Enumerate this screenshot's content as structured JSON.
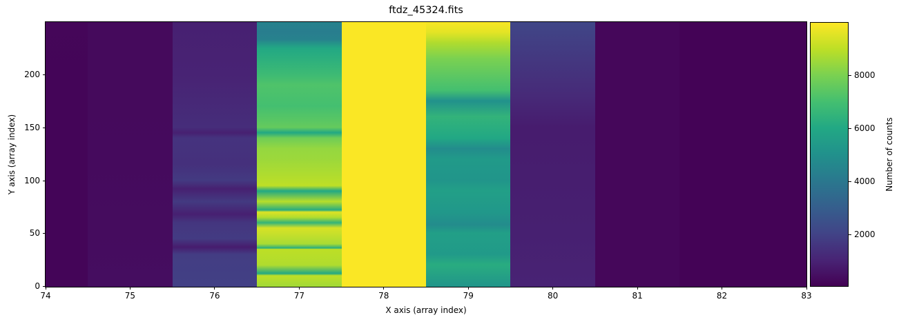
{
  "chart_data": {
    "type": "heatmap",
    "title": "ftdz_45324.fits",
    "xlabel": "X axis (array index)",
    "ylabel": "Y axis (array index)",
    "colorbar_label": "Number of counts",
    "colormap": "viridis",
    "xlim": [
      74,
      83
    ],
    "ylim": [
      -0.5,
      249.5
    ],
    "x_ticks": [
      74,
      75,
      76,
      77,
      78,
      79,
      80,
      81,
      82,
      83
    ],
    "y_ticks": [
      0,
      50,
      100,
      150,
      200
    ],
    "colorbar_range": [
      30,
      9990
    ],
    "colorbar_ticks": [
      2000,
      4000,
      6000,
      8000
    ],
    "grid": false,
    "columns": [
      {
        "x": 74,
        "mean_value": 150,
        "profile": [
          [
            0,
            140
          ],
          [
            100,
            150
          ],
          [
            200,
            150
          ],
          [
            249,
            170
          ]
        ]
      },
      {
        "x": 75,
        "mean_value": 300,
        "profile": [
          [
            0,
            380
          ],
          [
            60,
            340
          ],
          [
            120,
            300
          ],
          [
            200,
            280
          ],
          [
            249,
            280
          ]
        ]
      },
      {
        "x": 76,
        "mean_value": 1500,
        "profile": [
          [
            0,
            1900
          ],
          [
            30,
            1800
          ],
          [
            37,
            800
          ],
          [
            45,
            1750
          ],
          [
            60,
            1600
          ],
          [
            68,
            900
          ],
          [
            80,
            1700
          ],
          [
            92,
            900
          ],
          [
            100,
            1700
          ],
          [
            115,
            1400
          ],
          [
            140,
            1500
          ],
          [
            145,
            900
          ],
          [
            150,
            1300
          ],
          [
            200,
            1000
          ],
          [
            249,
            900
          ]
        ]
      },
      {
        "x": 77,
        "mean_value": 8200,
        "profile": [
          [
            0,
            8600
          ],
          [
            10,
            9000
          ],
          [
            12,
            6000
          ],
          [
            20,
            8800
          ],
          [
            35,
            9000
          ],
          [
            36,
            6200
          ],
          [
            40,
            8700
          ],
          [
            55,
            9400
          ],
          [
            60,
            6500
          ],
          [
            65,
            8800
          ],
          [
            70,
            9500
          ],
          [
            72,
            6200
          ],
          [
            80,
            8900
          ],
          [
            90,
            6000
          ],
          [
            95,
            9000
          ],
          [
            110,
            8700
          ],
          [
            120,
            8500
          ],
          [
            130,
            8400
          ],
          [
            140,
            7800
          ],
          [
            145,
            6000
          ],
          [
            150,
            7600
          ],
          [
            170,
            7000
          ],
          [
            190,
            7200
          ],
          [
            200,
            6800
          ],
          [
            215,
            6300
          ],
          [
            225,
            6000
          ],
          [
            233,
            4400
          ],
          [
            240,
            4200
          ],
          [
            249,
            4400
          ]
        ]
      },
      {
        "x": 78,
        "mean_value": 9950,
        "profile": [
          [
            0,
            9950
          ],
          [
            249,
            9950
          ]
        ]
      },
      {
        "x": 79,
        "mean_value": 6000,
        "profile": [
          [
            0,
            5200
          ],
          [
            20,
            6200
          ],
          [
            30,
            5400
          ],
          [
            50,
            5600
          ],
          [
            58,
            4800
          ],
          [
            70,
            5300
          ],
          [
            90,
            5600
          ],
          [
            100,
            5200
          ],
          [
            120,
            5400
          ],
          [
            130,
            4800
          ],
          [
            140,
            6000
          ],
          [
            160,
            6500
          ],
          [
            175,
            5000
          ],
          [
            185,
            7000
          ],
          [
            200,
            7500
          ],
          [
            215,
            8000
          ],
          [
            230,
            8800
          ],
          [
            240,
            9600
          ],
          [
            249,
            9900
          ]
        ]
      },
      {
        "x": 80,
        "mean_value": 800,
        "profile": [
          [
            0,
            1000
          ],
          [
            50,
            900
          ],
          [
            100,
            850
          ],
          [
            150,
            800
          ],
          [
            180,
            1200
          ],
          [
            220,
            1700
          ],
          [
            249,
            2100
          ]
        ]
      },
      {
        "x": 81,
        "mean_value": 180,
        "profile": [
          [
            0,
            200
          ],
          [
            249,
            200
          ]
        ]
      },
      {
        "x": 82,
        "mean_value": 100,
        "profile": [
          [
            0,
            100
          ],
          [
            249,
            100
          ]
        ]
      },
      {
        "x": 83,
        "mean_value": 100,
        "profile": [
          [
            0,
            100
          ],
          [
            249,
            100
          ]
        ]
      }
    ]
  },
  "labels": {
    "title": "ftdz_45324.fits",
    "xlabel": "X axis (array index)",
    "ylabel": "Y axis (array index)",
    "colorbar_label": "Number of counts",
    "x_ticks": [
      "74",
      "75",
      "76",
      "77",
      "78",
      "79",
      "80",
      "81",
      "82",
      "83"
    ],
    "y_ticks": [
      "0",
      "50",
      "100",
      "150",
      "200"
    ],
    "colorbar_ticks": [
      "2000",
      "4000",
      "6000",
      "8000"
    ]
  }
}
